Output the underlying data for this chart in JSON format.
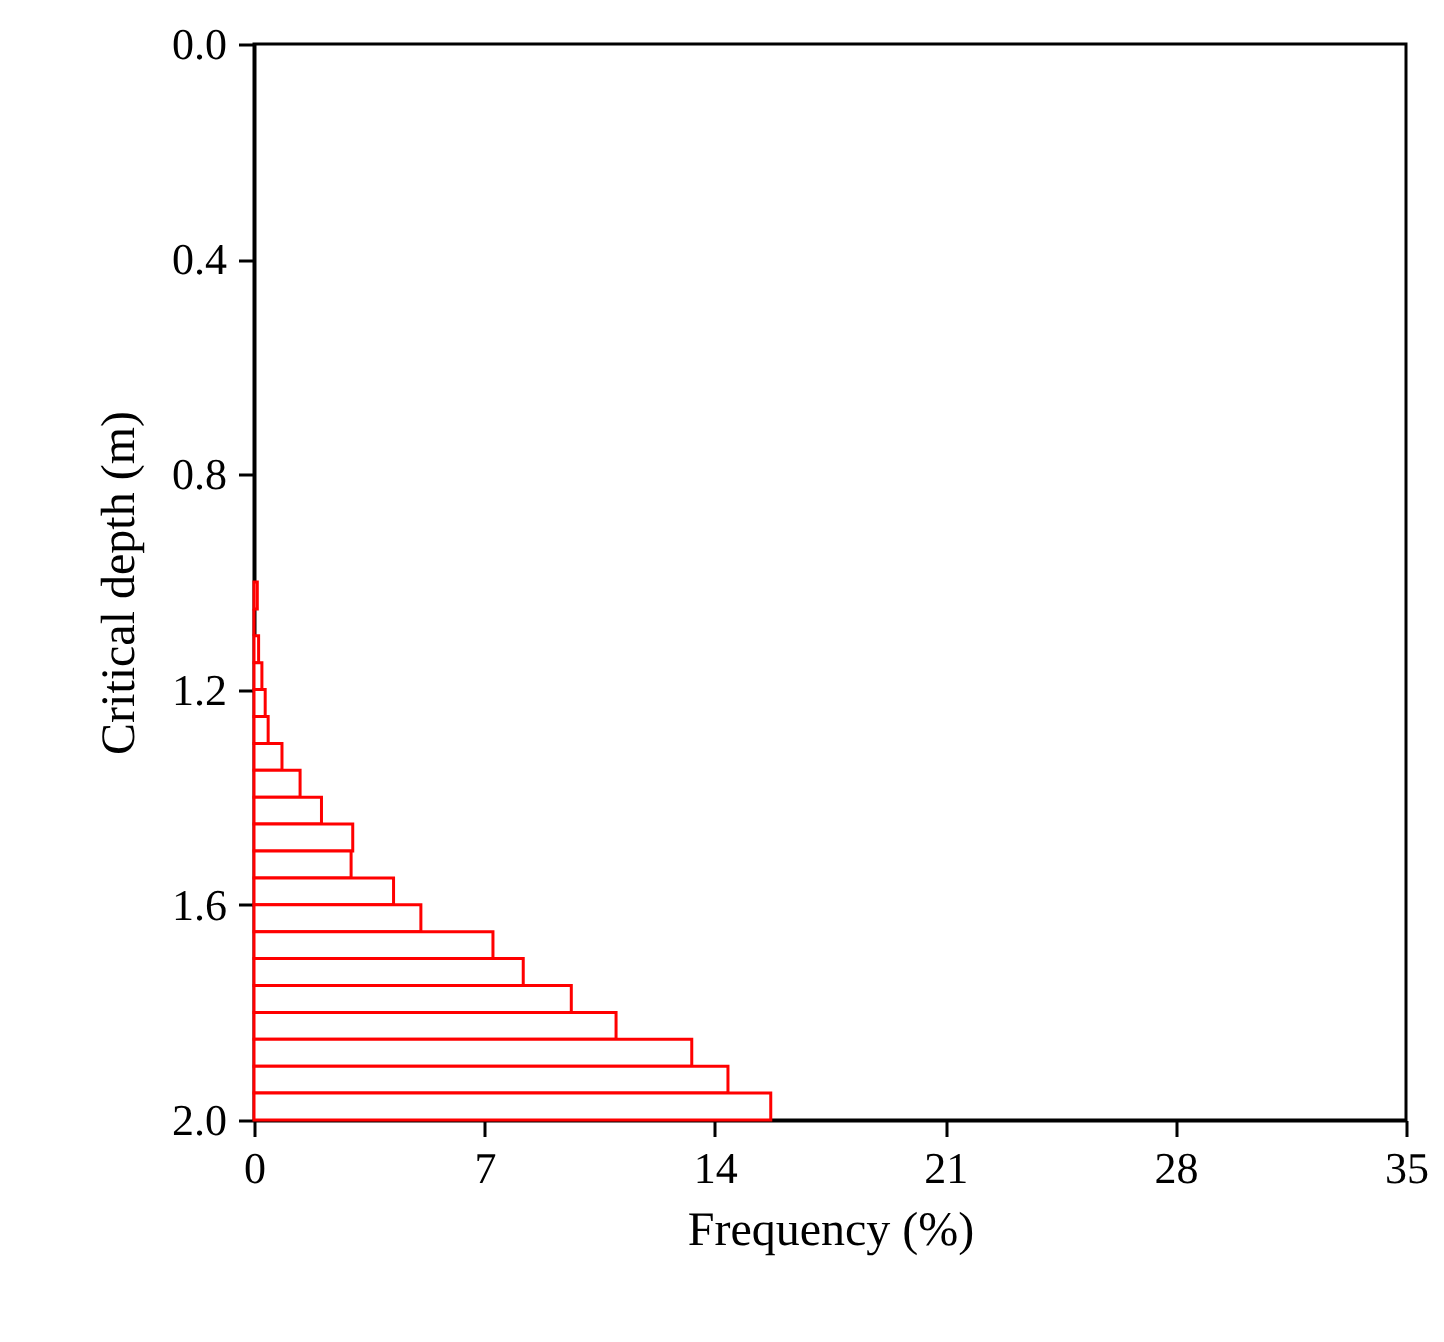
{
  "chart_data": {
    "type": "histogram",
    "orientation": "horizontal",
    "xlabel": "Frequency (%)",
    "ylabel": "Critical depth (m)",
    "bins": [
      1.0,
      1.05,
      1.1,
      1.15,
      1.2,
      1.25,
      1.3,
      1.35,
      1.4,
      1.45,
      1.5,
      1.55,
      1.6,
      1.65,
      1.7,
      1.75,
      1.8,
      1.85,
      1.9,
      1.95,
      2.0
    ],
    "values": [
      0.1,
      0,
      0.14,
      0.24,
      0.34,
      0.43,
      0.85,
      1.4,
      2.05,
      3.0,
      2.95,
      4.24,
      5.07,
      7.26,
      8.18,
      9.64,
      11.0,
      13.3,
      14.4,
      15.7
    ],
    "color": "#ff0000",
    "xlim": [
      0,
      35
    ],
    "xticks": [
      0,
      7,
      14,
      21,
      28,
      35
    ],
    "ylim": [
      2.0,
      0.0
    ],
    "yticks": [
      {
        "value": 0,
        "label": "0.0"
      },
      {
        "value": 0.4,
        "label": "0.4"
      },
      {
        "value": 0.8,
        "label": "0.8"
      },
      {
        "value": 1.2,
        "label": "1.2"
      },
      {
        "value": 1.6,
        "label": "1.6"
      },
      {
        "value": 2.0,
        "label": "2.0"
      }
    ],
    "grid": false,
    "legend": false
  }
}
